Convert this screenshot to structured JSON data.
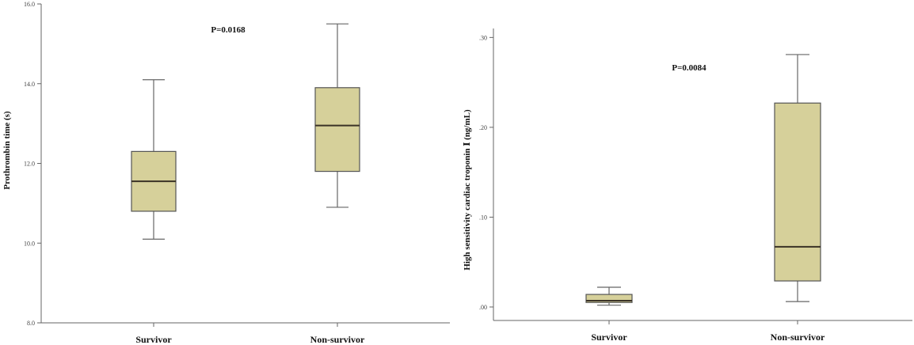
{
  "chart_data": [
    {
      "type": "boxplot",
      "title": "",
      "ylabel": "Prothrombin time (s)",
      "xlabel": "",
      "ylim": [
        8.0,
        16.0
      ],
      "yticks": [
        "8.0",
        "10.0",
        "12.0",
        "14.0",
        "16.0"
      ],
      "yticks_values": [
        8.0,
        10.0,
        12.0,
        14.0,
        16.0
      ],
      "categories": [
        "Survivor",
        "Non-survivor"
      ],
      "boxes": [
        {
          "min": 10.1,
          "q1": 10.8,
          "median": 11.55,
          "q3": 12.3,
          "max": 14.1
        },
        {
          "min": 10.9,
          "q1": 11.8,
          "median": 12.95,
          "q3": 13.9,
          "max": 15.5
        }
      ],
      "annotation": "P=0.0168",
      "box_color": "#d6d09a",
      "grid": false
    },
    {
      "type": "boxplot",
      "title": "",
      "ylabel": "High sensitivity cardiac troponin Ⅰ (ng/mL)",
      "xlabel": "",
      "ylim": [
        -0.015,
        0.31
      ],
      "yticks": [
        ".00",
        ".10",
        ".20",
        ".30"
      ],
      "yticks_values": [
        0.0,
        0.1,
        0.2,
        0.3
      ],
      "categories": [
        "Survivor",
        "Non-survivor"
      ],
      "boxes": [
        {
          "min": 0.002,
          "q1": 0.005,
          "median": 0.007,
          "q3": 0.014,
          "max": 0.022
        },
        {
          "min": 0.006,
          "q1": 0.029,
          "median": 0.067,
          "q3": 0.227,
          "max": 0.281
        }
      ],
      "annotation": "P=0.0084",
      "box_color": "#d6d09a",
      "grid": false
    }
  ]
}
